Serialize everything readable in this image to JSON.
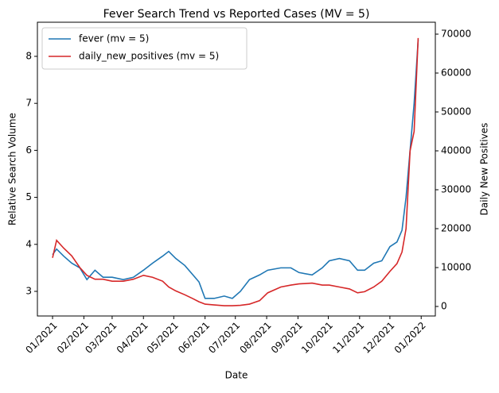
{
  "chart_data": {
    "type": "line",
    "title": "Fever Search Trend vs Reported Cases (MV = 5)",
    "x_label": "Date",
    "y_label": "Relative Search Volume",
    "y2_label": "Daily New Positives",
    "x": [
      "2021-01-01",
      "2021-01-05",
      "2021-01-12",
      "2021-01-20",
      "2021-01-28",
      "2021-02-04",
      "2021-02-12",
      "2021-02-20",
      "2021-03-01",
      "2021-03-12",
      "2021-03-22",
      "2021-04-01",
      "2021-04-10",
      "2021-04-20",
      "2021-04-26",
      "2021-05-03",
      "2021-05-12",
      "2021-05-20",
      "2021-05-26",
      "2021-06-01",
      "2021-06-10",
      "2021-06-20",
      "2021-06-28",
      "2021-07-06",
      "2021-07-15",
      "2021-07-25",
      "2021-08-02",
      "2021-08-15",
      "2021-08-25",
      "2021-09-02",
      "2021-09-15",
      "2021-09-25",
      "2021-10-02",
      "2021-10-12",
      "2021-10-22",
      "2021-10-30",
      "2021-11-06",
      "2021-11-15",
      "2021-11-23",
      "2021-12-01",
      "2021-12-08",
      "2021-12-13",
      "2021-12-17",
      "2021-12-21",
      "2021-12-25",
      "2021-12-29"
    ],
    "series": [
      {
        "name": "fever (mv = 5)",
        "color": "#1f77b4",
        "values": [
          3.78,
          3.9,
          3.75,
          3.6,
          3.5,
          3.25,
          3.45,
          3.3,
          3.3,
          3.25,
          3.3,
          3.45,
          3.6,
          3.75,
          3.85,
          3.7,
          3.55,
          3.35,
          3.2,
          2.85,
          2.85,
          2.9,
          2.85,
          3.0,
          3.25,
          3.35,
          3.45,
          3.5,
          3.5,
          3.4,
          3.35,
          3.5,
          3.65,
          3.7,
          3.65,
          3.45,
          3.45,
          3.6,
          3.65,
          3.95,
          4.05,
          4.3,
          5.0,
          6.0,
          7.0,
          8.35
        ]
      },
      {
        "name": "daily_new_positives (mv = 5)",
        "color": "#d62728",
        "axis": "y2",
        "values": [
          12500,
          17000,
          15000,
          13000,
          10000,
          8000,
          7000,
          7000,
          6500,
          6500,
          7000,
          8000,
          7500,
          6500,
          5000,
          4000,
          3000,
          2000,
          1200,
          600,
          400,
          200,
          200,
          300,
          600,
          1500,
          3500,
          5000,
          5500,
          5800,
          6000,
          5500,
          5500,
          5000,
          4500,
          3500,
          3800,
          5000,
          6500,
          9000,
          11000,
          14000,
          20000,
          40000,
          45000,
          69000
        ]
      }
    ],
    "xlim": [
      "2020-12-17",
      "2022-01-15"
    ],
    "xticks": [
      {
        "value": "2021-01-01",
        "label": "01/2021"
      },
      {
        "value": "2021-02-01",
        "label": "02/2021"
      },
      {
        "value": "2021-03-01",
        "label": "03/2021"
      },
      {
        "value": "2021-04-01",
        "label": "04/2021"
      },
      {
        "value": "2021-05-01",
        "label": "05/2021"
      },
      {
        "value": "2021-06-01",
        "label": "06/2021"
      },
      {
        "value": "2021-07-01",
        "label": "07/2021"
      },
      {
        "value": "2021-08-01",
        "label": "08/2021"
      },
      {
        "value": "2021-09-01",
        "label": "09/2021"
      },
      {
        "value": "2021-10-01",
        "label": "10/2021"
      },
      {
        "value": "2021-11-01",
        "label": "11/2021"
      },
      {
        "value": "2021-12-01",
        "label": "12/2021"
      },
      {
        "value": "2022-01-01",
        "label": "01/2022"
      }
    ],
    "ylim": [
      2.476,
      8.726
    ],
    "yticks": [
      3,
      4,
      5,
      6,
      7,
      8
    ],
    "y2lim": [
      -2449,
      73061
    ],
    "y2ticks": [
      0,
      10000,
      20000,
      30000,
      40000,
      50000,
      60000,
      70000
    ],
    "legend": "upper left"
  }
}
